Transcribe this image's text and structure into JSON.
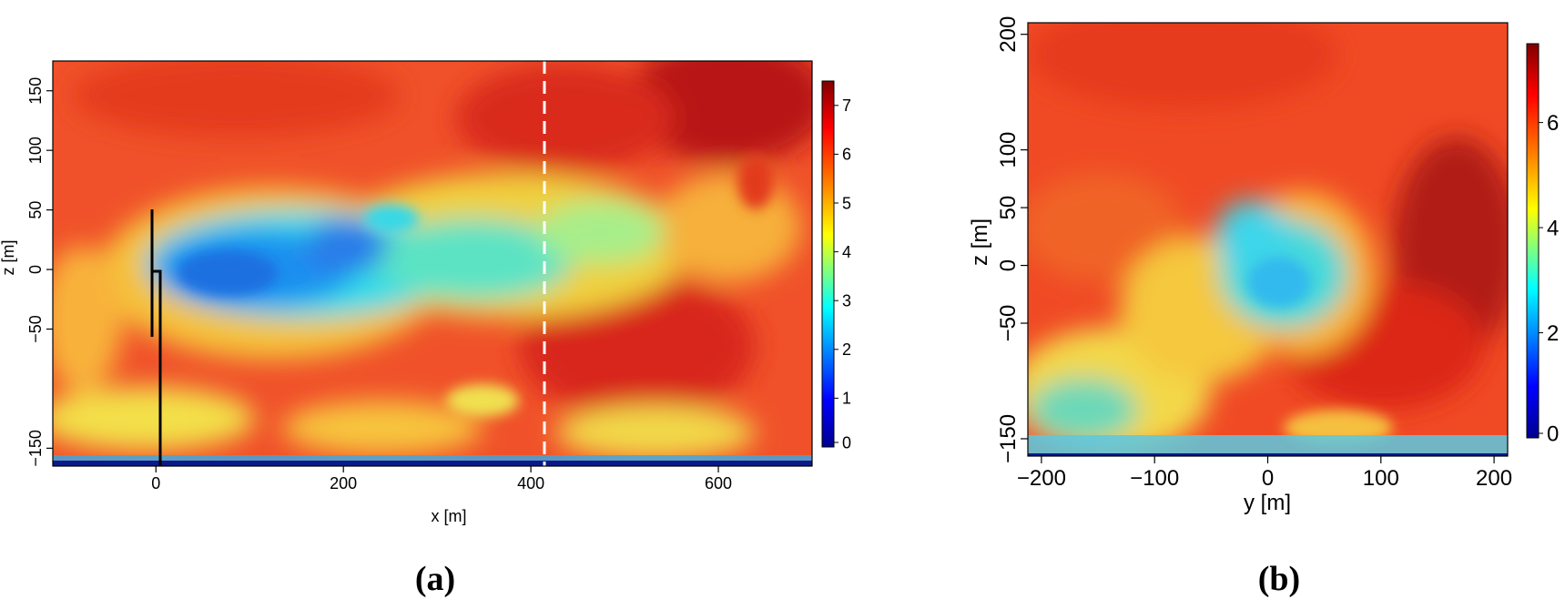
{
  "figure": {
    "caption_a": "(a)",
    "caption_b": "(b)"
  },
  "chart_data": [
    {
      "type": "heatmap",
      "panel": "a",
      "xlabel": "x [m]",
      "ylabel": "z [m]",
      "xlim": [
        -110,
        700
      ],
      "ylim": [
        -165,
        175
      ],
      "x_ticks": [
        0,
        200,
        400,
        600
      ],
      "x_tick_labels": [
        "0",
        "200",
        "400",
        "600"
      ],
      "y_ticks": [
        -150,
        -50,
        0,
        50,
        100,
        150
      ],
      "y_tick_labels": [
        "−150",
        "−50",
        "0",
        "50",
        "100",
        "150"
      ],
      "colorbar_range": [
        0,
        7.5
      ],
      "colorbar_ticks": [
        "0",
        "1",
        "2",
        "3",
        "4",
        "5",
        "6",
        "7"
      ],
      "colormap": [
        "#00008f",
        "#0000ff",
        "#00ffff",
        "#ffff00",
        "#ff7f00",
        "#ff0000",
        "#800000"
      ],
      "vertical_marker_x": 417,
      "vertical_marker_style": "white dashed",
      "turbine_rotor_x": 0,
      "turbine_rotor_z": [
        -52,
        52
      ],
      "turbine_hub_z": 0,
      "ground_color": "#0a1a8a"
    },
    {
      "type": "heatmap",
      "panel": "b",
      "xlabel": "y [m]",
      "ylabel": "z [m]",
      "xlim": [
        -212,
        212
      ],
      "ylim": [
        -165,
        210
      ],
      "x_ticks": [
        -200,
        -100,
        0,
        100,
        200
      ],
      "x_tick_labels": [
        "−200",
        "−100",
        "0",
        "100",
        "200"
      ],
      "y_ticks": [
        -150,
        -50,
        0,
        50,
        100,
        200
      ],
      "y_tick_labels": [
        "−150",
        "−50",
        "0",
        "50",
        "100",
        "200"
      ],
      "colorbar_ticks": [
        "0",
        "2",
        "4",
        "6"
      ],
      "colormap": [
        "#00008f",
        "#0000ff",
        "#00ffff",
        "#ffff00",
        "#ff7f00",
        "#ff0000",
        "#800000"
      ]
    }
  ]
}
